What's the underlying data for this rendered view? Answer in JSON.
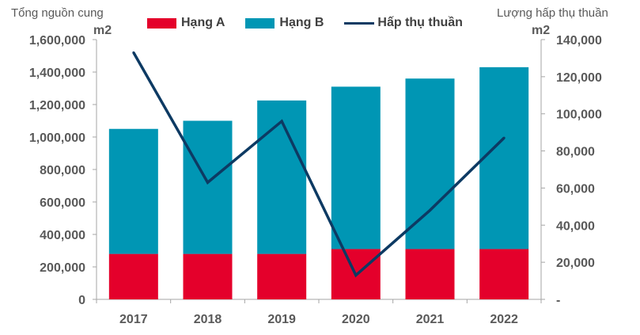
{
  "chart_data": {
    "type": "bar",
    "stacked": true,
    "categories": [
      "2017",
      "2018",
      "2019",
      "2020",
      "2021",
      "2022"
    ],
    "series": [
      {
        "name": "Hạng A",
        "axis": "left",
        "type": "bar",
        "color": "#e4002b",
        "values": [
          280000,
          280000,
          280000,
          310000,
          310000,
          310000
        ]
      },
      {
        "name": "Hạng B",
        "axis": "left",
        "type": "bar",
        "color": "#0096b4",
        "values": [
          770000,
          820000,
          945000,
          1000000,
          1050000,
          1120000
        ]
      },
      {
        "name": "Hấp thụ thuần",
        "axis": "right",
        "type": "line",
        "color": "#0d3a63",
        "values": [
          133000,
          63000,
          96000,
          13000,
          48000,
          87000
        ]
      }
    ],
    "left_axis": {
      "title": "Tổng nguồn cung",
      "unit": "m2",
      "ylim": [
        0,
        1600000
      ],
      "ticks": [
        "0",
        "200,000",
        "400,000",
        "600,000",
        "800,000",
        "1,000,000",
        "1,200,000",
        "1,400,000",
        "1,600,000"
      ]
    },
    "right_axis": {
      "title": "Lượng hấp thụ thuần",
      "unit": "m2",
      "ylim": [
        0,
        140000
      ],
      "ticks": [
        "-",
        "20,000",
        "40,000",
        "60,000",
        "80,000",
        "100,000",
        "120,000",
        "140,000"
      ]
    },
    "legend_position": "top",
    "grid": false
  }
}
